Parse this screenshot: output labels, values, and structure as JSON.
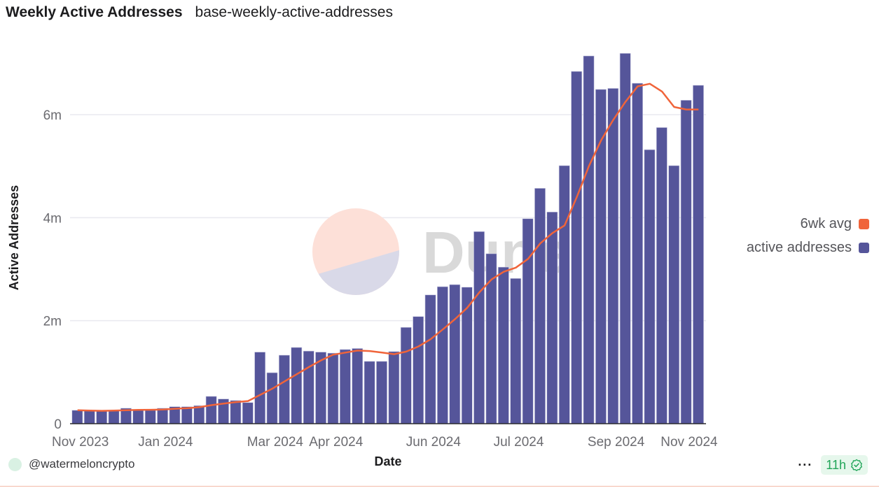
{
  "header": {
    "title": "Weekly Active Addresses",
    "subtitle": "base-weekly-active-addresses"
  },
  "footer": {
    "user": "@watermeloncrypto",
    "more": "···",
    "freshness": "11h",
    "freshness_icon": "check-badge-icon"
  },
  "watermark": {
    "text": "Dune"
  },
  "colors": {
    "bars": "#55559a",
    "avg_line": "#f0643a",
    "grid": "#e9e9ef",
    "badge_green": "#22a559"
  },
  "chart_data": {
    "type": "bar",
    "title": "Weekly Active Addresses",
    "xlabel": "Date",
    "ylabel": "Active Addresses",
    "ylim": [
      0,
      7300000
    ],
    "yticks": [
      {
        "value": 0,
        "label": "0"
      },
      {
        "value": 2000000,
        "label": "2m"
      },
      {
        "value": 4000000,
        "label": "4m"
      },
      {
        "value": 6000000,
        "label": "6m"
      }
    ],
    "xticks": [
      {
        "index": 0,
        "label": "Nov 2023"
      },
      {
        "index": 7,
        "label": "Jan 2024"
      },
      {
        "index": 16,
        "label": "Mar 2024"
      },
      {
        "index": 21,
        "label": "Apr 2024"
      },
      {
        "index": 29,
        "label": "Jun 2024"
      },
      {
        "index": 36,
        "label": "Jul 2024"
      },
      {
        "index": 44,
        "label": "Sep 2024"
      },
      {
        "index": 50,
        "label": "Nov 2024"
      }
    ],
    "grid": true,
    "legend_position": "right",
    "series": [
      {
        "name": "6wk avg",
        "type": "line",
        "color": "#f0643a",
        "values": [
          260000,
          255000,
          250000,
          255000,
          262000,
          268000,
          270000,
          275000,
          290000,
          300000,
          320000,
          360000,
          390000,
          420000,
          440000,
          560000,
          680000,
          820000,
          960000,
          1100000,
          1230000,
          1340000,
          1380000,
          1420000,
          1410000,
          1380000,
          1350000,
          1400000,
          1500000,
          1640000,
          1830000,
          2030000,
          2250000,
          2550000,
          2800000,
          2950000,
          3030000,
          3200000,
          3500000,
          3700000,
          3850000,
          4400000,
          5000000,
          5500000,
          5900000,
          6250000,
          6550000,
          6600000,
          6450000,
          6150000,
          6100000,
          6100000
        ]
      },
      {
        "name": "active addresses",
        "type": "bar",
        "color": "#55559a",
        "values": [
          260000,
          250000,
          250000,
          250000,
          300000,
          260000,
          260000,
          300000,
          330000,
          330000,
          350000,
          530000,
          480000,
          450000,
          410000,
          1390000,
          990000,
          1330000,
          1480000,
          1410000,
          1390000,
          1370000,
          1440000,
          1460000,
          1210000,
          1210000,
          1400000,
          1870000,
          2080000,
          2500000,
          2660000,
          2700000,
          2650000,
          3730000,
          3300000,
          3040000,
          2820000,
          3980000,
          4570000,
          4110000,
          5010000,
          6840000,
          7140000,
          6490000,
          6510000,
          7190000,
          6610000,
          5320000,
          5750000,
          5010000,
          6280000,
          6570000
        ]
      }
    ]
  }
}
